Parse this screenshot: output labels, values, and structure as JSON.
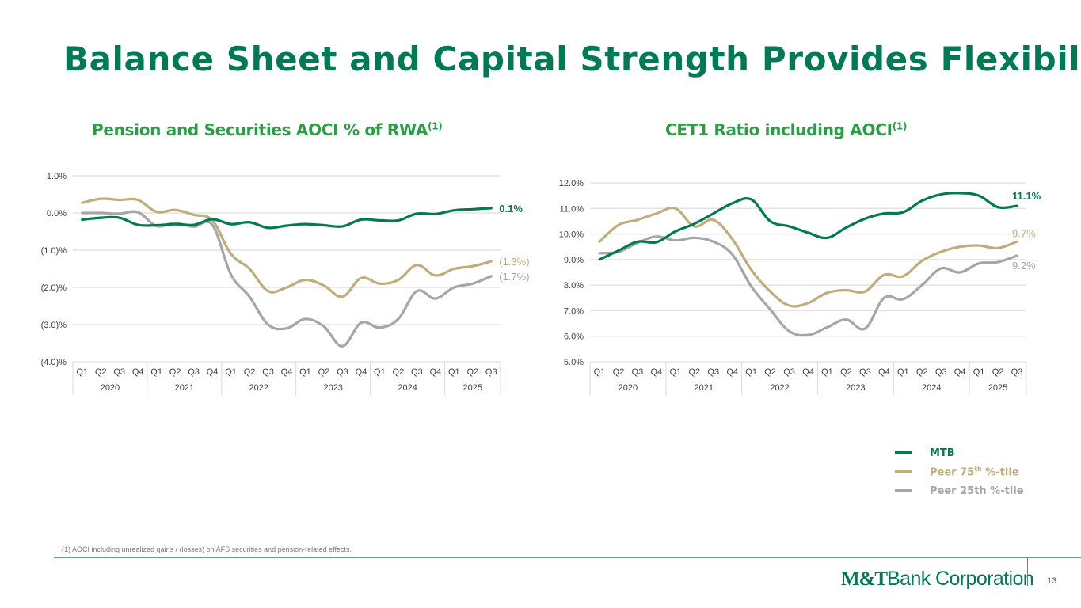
{
  "title": "Balance Sheet and Capital Strength Provides Flexibility",
  "colors": {
    "mtb": "#007a53",
    "peer75": "#bfae7a",
    "peer25": "#a6a6a6",
    "title": "#007a53",
    "subtitle": "#2e9c47"
  },
  "legend": {
    "items": [
      {
        "label": "MTB",
        "sup": "",
        "suffix": "",
        "color": "#007a53"
      },
      {
        "label": "Peer 75",
        "sup": "th",
        "suffix": " %-tile",
        "color": "#bfae7a"
      },
      {
        "label": "Peer 25th %-tile",
        "sup": "",
        "suffix": "",
        "color": "#a6a6a6"
      }
    ]
  },
  "footnote": "(1) AOCI including unrealized gains / (losses) on AFS securities and pension-related effects.",
  "logo": {
    "bold": "M&T",
    "light": "Bank Corporation"
  },
  "page_number": "13",
  "chart_data": [
    {
      "type": "line",
      "title": "Pension and Securities AOCI % of RWA",
      "title_sup": "(1)",
      "xlabel": "",
      "ylabel": "",
      "categories": [
        "Q1",
        "Q2",
        "Q3",
        "Q4",
        "Q1",
        "Q2",
        "Q3",
        "Q4",
        "Q1",
        "Q2",
        "Q3",
        "Q4",
        "Q1",
        "Q2",
        "Q3",
        "Q4",
        "Q1",
        "Q2",
        "Q3",
        "Q4",
        "Q1",
        "Q2",
        "Q3"
      ],
      "years": [
        {
          "label": "2020",
          "span": 4
        },
        {
          "label": "2021",
          "span": 4
        },
        {
          "label": "2022",
          "span": 4
        },
        {
          "label": "2023",
          "span": 4
        },
        {
          "label": "2024",
          "span": 4
        },
        {
          "label": "2025",
          "span": 3
        }
      ],
      "ylim": [
        -4.0,
        1.0
      ],
      "yticks": [
        1.0,
        0.0,
        -1.0,
        -2.0,
        -3.0,
        -4.0
      ],
      "ytick_labels": [
        "1.0%",
        "0.0%",
        "(1.0)%",
        "(2.0)%",
        "(3.0)%",
        "(4.0)%"
      ],
      "grid": true,
      "series": [
        {
          "name": "MTB",
          "key": "mtb",
          "end_label": "0.1%",
          "values": [
            -0.18,
            -0.13,
            -0.13,
            -0.32,
            -0.33,
            -0.3,
            -0.32,
            -0.17,
            -0.3,
            -0.25,
            -0.4,
            -0.34,
            -0.3,
            -0.33,
            -0.36,
            -0.18,
            -0.2,
            -0.2,
            -0.02,
            -0.03,
            0.07,
            0.1,
            0.13
          ]
        },
        {
          "name": "Peer 75th %-tile",
          "key": "peer75",
          "end_label": "(1.3%)",
          "values": [
            0.27,
            0.38,
            0.35,
            0.35,
            0.03,
            0.08,
            -0.05,
            -0.2,
            -1.1,
            -1.5,
            -2.1,
            -2.0,
            -1.8,
            -1.95,
            -2.25,
            -1.75,
            -1.9,
            -1.8,
            -1.4,
            -1.68,
            -1.5,
            -1.43,
            -1.3
          ]
        },
        {
          "name": "Peer 25th %-tile",
          "key": "peer25",
          "end_label": "(1.7%)",
          "values": [
            0.0,
            0.0,
            -0.02,
            0.02,
            -0.35,
            -0.27,
            -0.37,
            -0.32,
            -1.65,
            -2.25,
            -3.0,
            -3.1,
            -2.85,
            -3.05,
            -3.58,
            -2.95,
            -3.08,
            -2.85,
            -2.1,
            -2.3,
            -2.0,
            -1.9,
            -1.7
          ]
        }
      ]
    },
    {
      "type": "line",
      "title": "CET1 Ratio including AOCI",
      "title_sup": "(1)",
      "xlabel": "",
      "ylabel": "",
      "categories": [
        "Q1",
        "Q2",
        "Q3",
        "Q4",
        "Q1",
        "Q2",
        "Q3",
        "Q4",
        "Q1",
        "Q2",
        "Q3",
        "Q4",
        "Q1",
        "Q2",
        "Q3",
        "Q4",
        "Q1",
        "Q2",
        "Q3",
        "Q4",
        "Q1",
        "Q2",
        "Q3"
      ],
      "years": [
        {
          "label": "2020",
          "span": 4
        },
        {
          "label": "2021",
          "span": 4
        },
        {
          "label": "2022",
          "span": 4
        },
        {
          "label": "2023",
          "span": 4
        },
        {
          "label": "2024",
          "span": 4
        },
        {
          "label": "2025",
          "span": 3
        }
      ],
      "ylim": [
        5.0,
        12.0
      ],
      "yticks": [
        12.0,
        11.0,
        10.0,
        9.0,
        8.0,
        7.0,
        6.0,
        5.0
      ],
      "ytick_labels": [
        "12.0%",
        "11.0%",
        "10.0%",
        "9.0%",
        "8.0%",
        "7.0%",
        "6.0%",
        "5.0%"
      ],
      "grid": true,
      "series": [
        {
          "name": "MTB",
          "key": "mtb",
          "end_label": "11.1%",
          "values": [
            9.0,
            9.35,
            9.7,
            9.68,
            10.1,
            10.4,
            10.8,
            11.2,
            11.35,
            10.5,
            10.3,
            10.05,
            9.85,
            10.25,
            10.6,
            10.8,
            10.85,
            11.3,
            11.55,
            11.6,
            11.5,
            11.05,
            11.1
          ]
        },
        {
          "name": "Peer 75th %-tile",
          "key": "peer75",
          "end_label": "9.7%",
          "values": [
            9.7,
            10.35,
            10.55,
            10.8,
            11.0,
            10.3,
            10.55,
            9.8,
            8.6,
            7.75,
            7.2,
            7.3,
            7.7,
            7.8,
            7.75,
            8.4,
            8.35,
            8.95,
            9.3,
            9.5,
            9.55,
            9.45,
            9.7
          ]
        },
        {
          "name": "Peer 25th %-tile",
          "key": "peer25",
          "end_label": "9.2%",
          "values": [
            9.25,
            9.3,
            9.65,
            9.9,
            9.75,
            9.85,
            9.7,
            9.2,
            7.95,
            7.05,
            6.2,
            6.05,
            6.35,
            6.65,
            6.3,
            7.5,
            7.45,
            8.0,
            8.65,
            8.5,
            8.85,
            8.9,
            9.15
          ]
        }
      ]
    }
  ]
}
